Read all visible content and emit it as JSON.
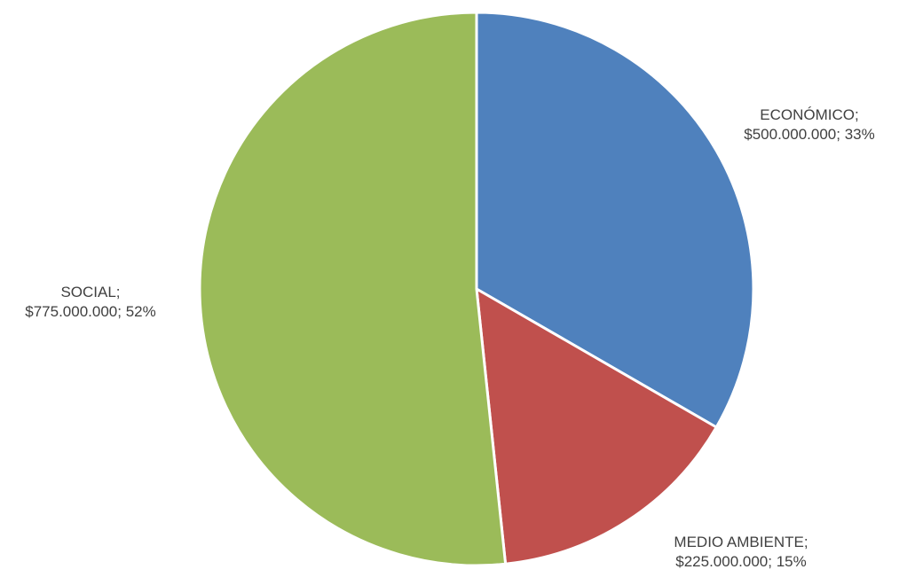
{
  "chart_data": {
    "type": "pie",
    "title": "",
    "start_angle_deg": 0,
    "direction": "clockwise",
    "slices": [
      {
        "category": "ECONÓMICO",
        "value": 500000000,
        "percent": 33,
        "color": "#4F81BD",
        "label_line1": "ECONÓMICO;",
        "label_line2": "$500.000.000; 33%"
      },
      {
        "category": "MEDIO AMBIENTE",
        "value": 225000000,
        "percent": 15,
        "color": "#C0504D",
        "label_line1": "MEDIO AMBIENTE;",
        "label_line2": "$225.000.000; 15%"
      },
      {
        "category": "SOCIAL",
        "value": 775000000,
        "percent": 52,
        "color": "#9BBB59",
        "label_line1": "SOCIAL;",
        "label_line2": "$775.000.000; 52%"
      }
    ]
  }
}
